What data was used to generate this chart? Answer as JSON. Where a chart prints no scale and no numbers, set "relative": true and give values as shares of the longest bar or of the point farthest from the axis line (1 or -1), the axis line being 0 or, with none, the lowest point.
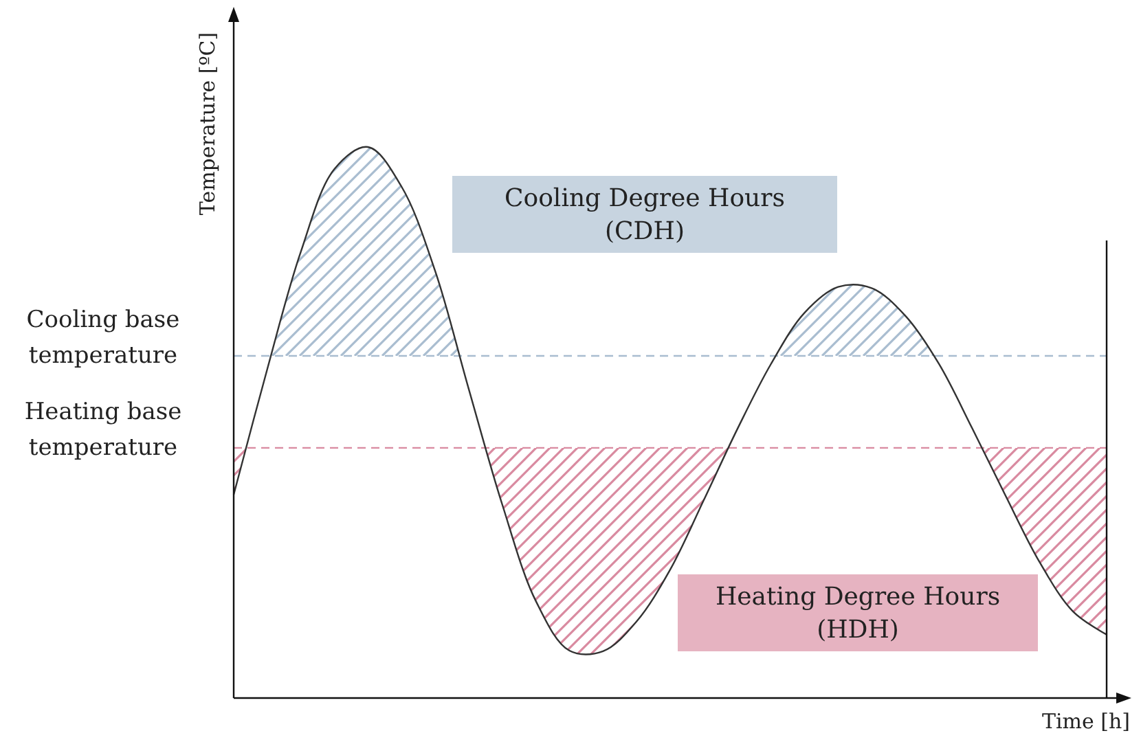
{
  "chart_data": {
    "type": "line",
    "relative": true,
    "xlabel": "Time [h]",
    "ylabel": "Temperature [ºC]",
    "categories": [
      null,
      null,
      null,
      null,
      null,
      null,
      null,
      null,
      null,
      null,
      null,
      null,
      null,
      null,
      null,
      null,
      null,
      null,
      null,
      null,
      null,
      null,
      null,
      null,
      null,
      null,
      null
    ],
    "series": [
      {
        "color": "#333333",
        "values": [
          0.369,
          0.597,
          0.81,
          0.96,
          1,
          0.928,
          0.775,
          0.561,
          0.351,
          0.176,
          0.086,
          0.085,
          0.139,
          0.233,
          0.359,
          0.488,
          0.606,
          0.699,
          0.746,
          0.744,
          0.694,
          0.607,
          0.489,
          0.366,
          0.247,
          0.157,
          0.115
        ]
      }
    ],
    "ref_lines": [
      {
        "axis": "y",
        "value": 0.621,
        "label": "Cooling base temperature",
        "color": "#a9bdd0",
        "line_style": "dashed"
      },
      {
        "axis": "y",
        "value": 0.454,
        "label": "Heating base temperature",
        "color": "#d98aa0",
        "line_style": "dashed"
      }
    ],
    "annotations": [
      "Cooling Degree Hours (CDH)",
      "Heating Degree Hours (HDH)"
    ],
    "line_style": "solid"
  }
}
